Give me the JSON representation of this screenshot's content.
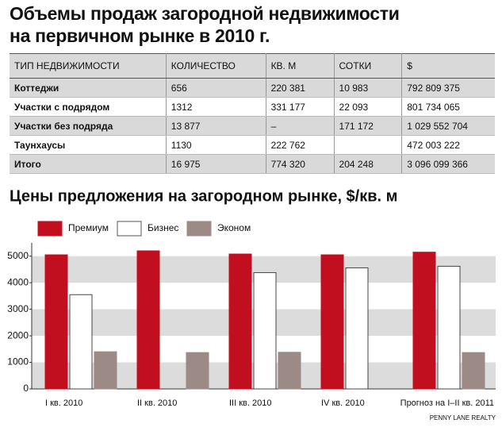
{
  "header": {
    "title": [
      "Объемы продаж загородной недвижимости",
      "на первичном рынке в 2010 г."
    ]
  },
  "table": {
    "columns": [
      "ТИП НЕДВИЖИМОСТИ",
      "КОЛИЧЕСТВО",
      "КВ. М",
      "СОТКИ",
      "$"
    ],
    "rows": [
      [
        "Коттеджи",
        "656",
        "220 381",
        "10 983",
        "792 809 375"
      ],
      [
        "Участки с подрядом",
        "1312",
        "331 177",
        "22 093",
        "801 734 065"
      ],
      [
        "Участки без подряда",
        "13 877",
        "–",
        "171 172",
        "1 029 552 704"
      ],
      [
        "Таунхаусы",
        "1130",
        "222 762",
        null,
        "472 003 222"
      ],
      [
        "Итого",
        "16 975",
        "774 320",
        "204 248",
        "3 096 099 366"
      ]
    ]
  },
  "chart_data": {
    "type": "bar",
    "title": "Цены предложения на загородном рынке, $/кв. м",
    "categories": [
      "I кв. 2010",
      "II кв. 2010",
      "III кв. 2010",
      "IV кв. 2010",
      "Прогноз на I–II кв. 2011"
    ],
    "series": [
      {
        "name": "Премиум",
        "color": "#c20f1f",
        "values": [
          5050,
          5200,
          5080,
          5050,
          5150
        ]
      },
      {
        "name": "Бизнес",
        "color": "#ffffff",
        "values": [
          3550,
          null,
          4380,
          4560,
          4620
        ]
      },
      {
        "name": "Эконом",
        "color": "#9b8a86",
        "values": [
          1400,
          1370,
          1380,
          null,
          1370
        ]
      }
    ],
    "ylim": [
      0,
      5500
    ],
    "yticks": [
      0,
      1000,
      2000,
      3000,
      4000,
      5000
    ],
    "source": "PENNY LANE REALTY"
  }
}
